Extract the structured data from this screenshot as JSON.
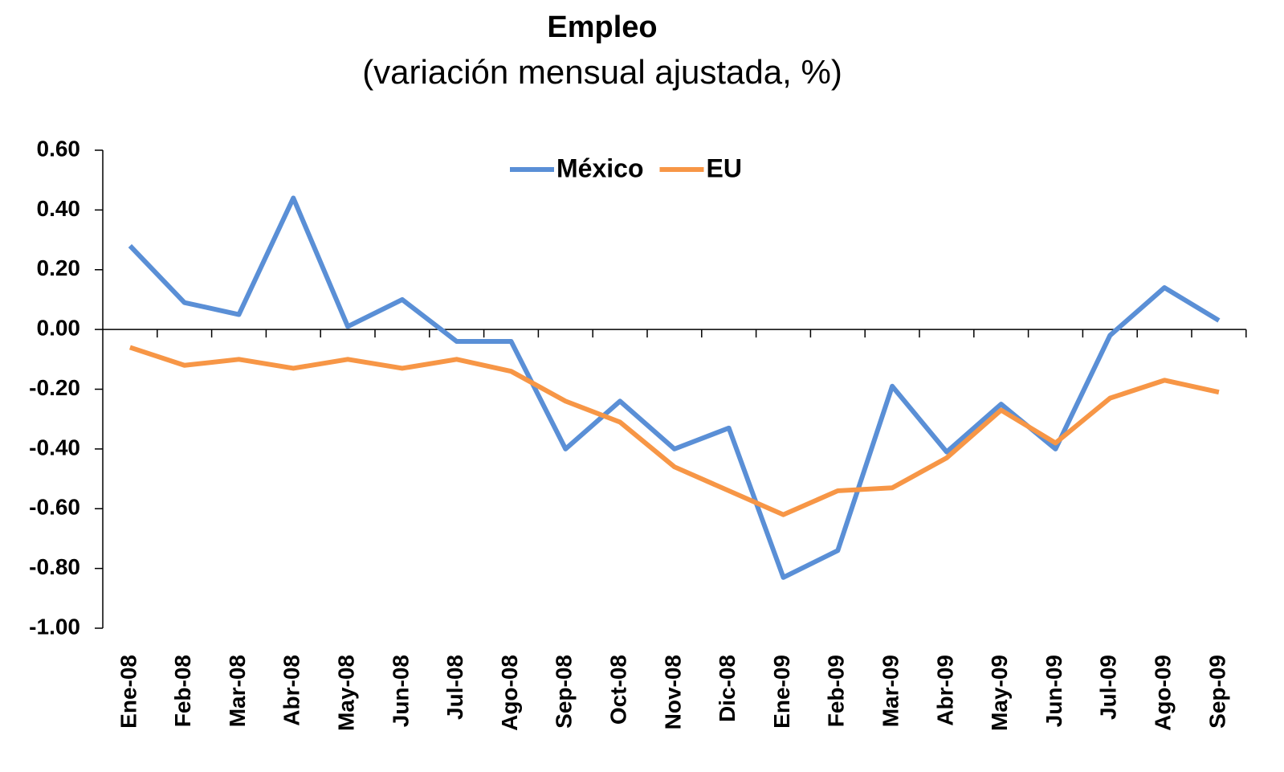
{
  "chart_data": {
    "type": "line",
    "title": "Empleo",
    "subtitle": "(variación mensual ajustada, %)",
    "categories": [
      "Ene-08",
      "Feb-08",
      "Mar-08",
      "Abr-08",
      "May-08",
      "Jun-08",
      "Jul-08",
      "Ago-08",
      "Sep-08",
      "Oct-08",
      "Nov-08",
      "Dic-08",
      "Ene-09",
      "Feb-09",
      "Mar-09",
      "Abr-09",
      "May-09",
      "Jun-09",
      "Jul-09",
      "Ago-09",
      "Sep-09"
    ],
    "series": [
      {
        "name": "México",
        "color": "#5a8fd6",
        "values": [
          0.28,
          0.09,
          0.05,
          0.44,
          0.01,
          0.1,
          -0.04,
          -0.04,
          -0.4,
          -0.24,
          -0.4,
          -0.33,
          -0.83,
          -0.74,
          -0.19,
          -0.41,
          -0.25,
          -0.4,
          -0.02,
          0.14,
          0.03
        ]
      },
      {
        "name": "EU",
        "color": "#f79646",
        "values": [
          -0.06,
          -0.12,
          -0.1,
          -0.13,
          -0.1,
          -0.13,
          -0.1,
          -0.14,
          -0.24,
          -0.31,
          -0.46,
          -0.54,
          -0.62,
          -0.54,
          -0.53,
          -0.43,
          -0.27,
          -0.38,
          -0.23,
          -0.17,
          -0.21
        ]
      }
    ],
    "ylim": [
      -1.0,
      0.6
    ],
    "yticks": [
      {
        "value": 0.6,
        "label": "0.60"
      },
      {
        "value": 0.4,
        "label": "0.40"
      },
      {
        "value": 0.2,
        "label": "0.20"
      },
      {
        "value": 0,
        "label": "0.00"
      },
      {
        "value": -0.2,
        "label": "-0.20"
      },
      {
        "value": -0.4,
        "label": "-0.40"
      },
      {
        "value": -0.6,
        "label": "-0.60"
      },
      {
        "value": -0.8,
        "label": "-0.80"
      },
      {
        "value": -1.0,
        "label": "-1.00"
      }
    ],
    "legend": "top"
  }
}
